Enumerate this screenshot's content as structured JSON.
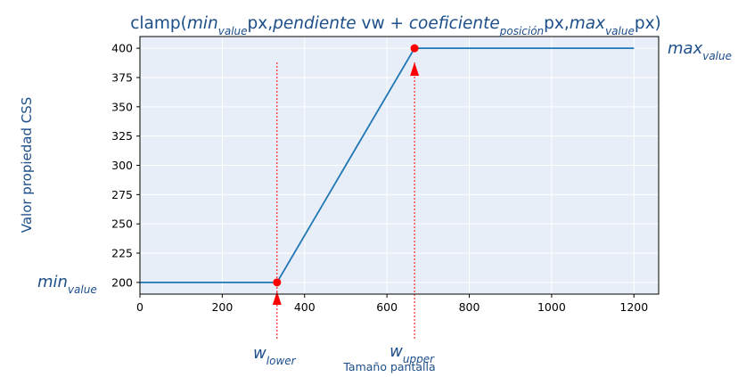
{
  "chart_data": {
    "type": "line",
    "title_parts": [
      {
        "t": "clamp(",
        "style": "normal"
      },
      {
        "t": "min",
        "style": "italic"
      },
      {
        "t": "value",
        "style": "sub"
      },
      {
        "t": "px,",
        "style": "normal"
      },
      {
        "t": "pendiente",
        "style": "italic"
      },
      {
        "t": " vw + ",
        "style": "normal"
      },
      {
        "t": "coeficiente",
        "style": "italic"
      },
      {
        "t": "posición",
        "style": "sub"
      },
      {
        "t": "px,",
        "style": "normal"
      },
      {
        "t": "max",
        "style": "italic"
      },
      {
        "t": "value",
        "style": "sub"
      },
      {
        "t": "px)",
        "style": "normal"
      }
    ],
    "xlabel": "Tamaño pantalla",
    "ylabel": "Valor propiedad CSS",
    "xlim": [
      0,
      1260
    ],
    "ylim": [
      190,
      410
    ],
    "x_ticks": [
      0,
      200,
      400,
      600,
      800,
      1000,
      1200
    ],
    "y_ticks": [
      200,
      225,
      250,
      275,
      300,
      325,
      350,
      375,
      400
    ],
    "grid": true,
    "series": [
      {
        "name": "clamp",
        "color": "#1f77b4",
        "x": [
          0,
          333,
          667,
          1200
        ],
        "y": [
          200,
          200,
          400,
          400
        ]
      }
    ],
    "points": [
      {
        "x": 333,
        "y": 200,
        "color": "#ff0000"
      },
      {
        "x": 667,
        "y": 400,
        "color": "#ff0000"
      }
    ],
    "annotations": [
      {
        "id": "min",
        "main": "min",
        "sub": "value",
        "at_y": 200,
        "side": "left"
      },
      {
        "id": "max",
        "main": "max",
        "sub": "value",
        "at_y": 400,
        "side": "right"
      },
      {
        "id": "w_lower",
        "main": "w",
        "sub": "lower",
        "at_x": 333,
        "side": "below"
      },
      {
        "id": "w_upper",
        "main": "w",
        "sub": "upper",
        "at_x": 667,
        "side": "below"
      }
    ],
    "colors": {
      "plot_bg": "#e8eef8",
      "grid": "#ffffff",
      "text": "#1c4e8a",
      "marker": "#ff0000"
    }
  }
}
